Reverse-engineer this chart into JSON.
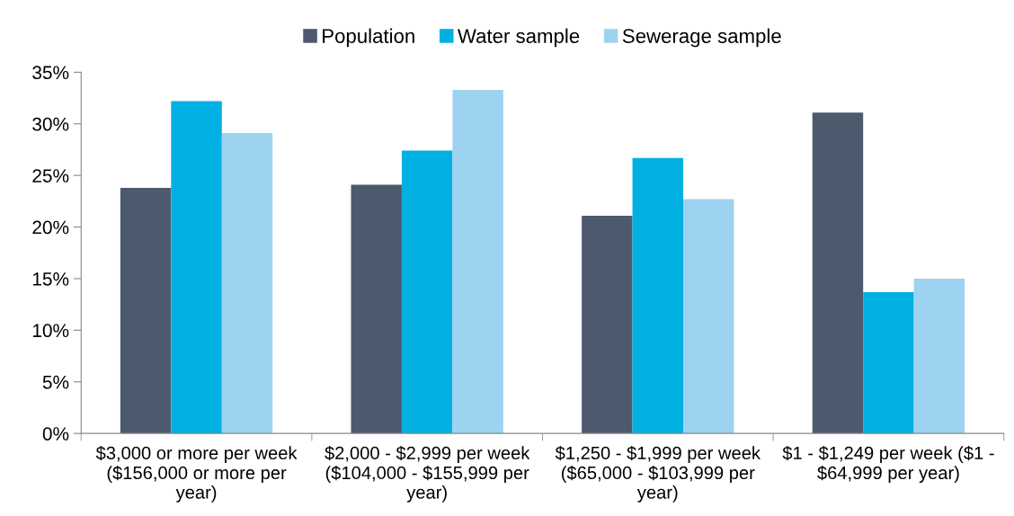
{
  "chart_data": {
    "type": "bar",
    "categories": [
      "$3,000 or more per week ($156,000 or more per year)",
      "$2,000 - $2,999 per week ($104,000 - $155,999 per year)",
      "$1,250 - $1,999 per week ($65,000 - $103,999 per year)",
      "$1 - $1,249 per week ($1 - $64,999 per year)"
    ],
    "series": [
      {
        "name": "Population",
        "color": "#4d5a6e",
        "values": [
          23.8,
          24.1,
          21.1,
          31.1
        ]
      },
      {
        "name": "Water sample",
        "color": "#00b0e3",
        "values": [
          32.2,
          27.4,
          26.7,
          13.7
        ]
      },
      {
        "name": "Sewerage sample",
        "color": "#9dd3f0",
        "values": [
          29.1,
          33.3,
          22.7,
          15.0
        ]
      }
    ],
    "ylim": [
      0,
      35
    ],
    "yticks": [
      {
        "value": 0,
        "label": "0%"
      },
      {
        "value": 5,
        "label": "5%"
      },
      {
        "value": 10,
        "label": "10%"
      },
      {
        "value": 15,
        "label": "15%"
      },
      {
        "value": 20,
        "label": "20%"
      },
      {
        "value": 25,
        "label": "25%"
      },
      {
        "value": 30,
        "label": "30%"
      },
      {
        "value": 35,
        "label": "35%"
      }
    ],
    "legend": "top",
    "grid": false
  }
}
